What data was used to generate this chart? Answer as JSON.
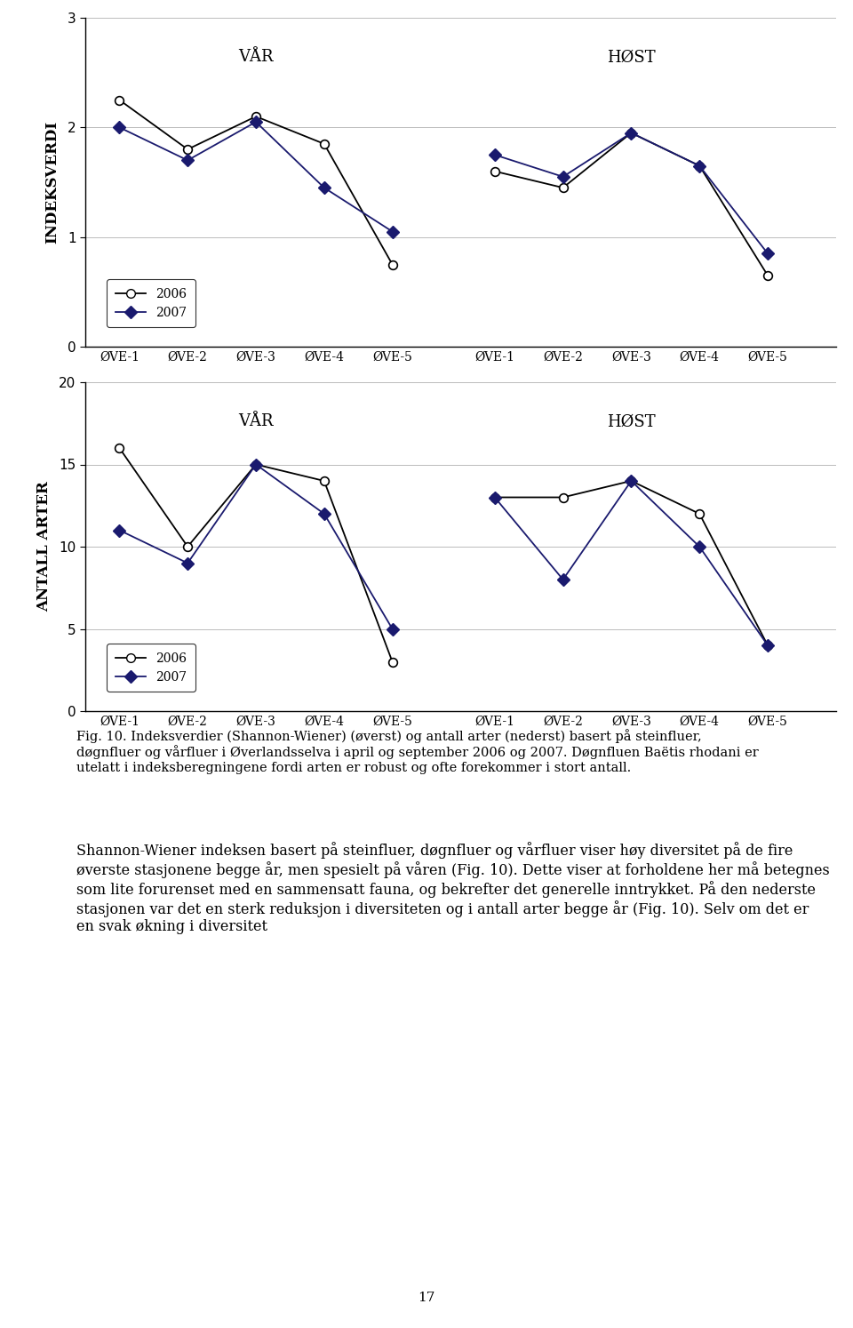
{
  "chart1": {
    "title_var": "VÅR",
    "title_host": "HØST",
    "ylabel": "INDEKSVERDI",
    "ylim": [
      0,
      3
    ],
    "yticks": [
      0,
      1,
      2,
      3
    ],
    "categories": [
      "ØVE-1",
      "ØVE-2",
      "ØVE-3",
      "ØVE-4",
      "ØVE-5"
    ],
    "var_2006": [
      2.25,
      1.8,
      2.1,
      1.85,
      0.75
    ],
    "var_2007": [
      2.0,
      1.7,
      2.05,
      1.45,
      1.05
    ],
    "host_2006": [
      1.6,
      1.45,
      1.95,
      1.65,
      0.65
    ],
    "host_2007": [
      1.75,
      1.55,
      1.95,
      1.65,
      0.85
    ]
  },
  "chart2": {
    "title_var": "VÅR",
    "title_host": "HØST",
    "ylabel": "ANTALL ARTER",
    "ylim": [
      0,
      20
    ],
    "yticks": [
      0,
      5,
      10,
      15,
      20
    ],
    "categories": [
      "ØVE-1",
      "ØVE-2",
      "ØVE-3",
      "ØVE-4",
      "ØVE-5"
    ],
    "var_2006": [
      16,
      10,
      15,
      14,
      3
    ],
    "var_2007": [
      11,
      9,
      15,
      12,
      5
    ],
    "host_2006": [
      13,
      13,
      14,
      12,
      4
    ],
    "host_2007": [
      13,
      8,
      14,
      10,
      4
    ]
  },
  "legend_2006": "2006",
  "legend_2007": "2007",
  "color_2006": "black",
  "color_2007": "#1a1a6e",
  "marker_2006": "o",
  "marker_2007": "D",
  "caption_bold": "Fig. 10.",
  "caption_text": " Indeksverdier (Shannon-Wiener) (øverst) og antall arter (nederst) basert på steinfluer, døgnfluer og vårfluer i Øverlandsselva i april og september 2006 og 2007. Døgnfluen Baëtis rhodani er utelatt i indeksberegningene fordi arten er robust og ofte forekommer i stort antall.",
  "body_text": "Shannon-Wiener indeksen basert på steinfluer, døgnfluer og vårfluer viser høy diversitet på de fire øverste stasjonene begge år, men spesielt på våren (Fig. 10). Dette viser at forholdene her må betegnes som lite forurenset med en sammensatt fauna, og bekrefter det generelle inntrykket. På den nederste stasjonen var det en sterk reduksjon i diversiteten og i antall arter begge år (Fig. 10). Selv om det er en svak økning i diversitet",
  "page_number": "17",
  "background_color": "#ffffff",
  "grid_color": "#bbbbbb"
}
